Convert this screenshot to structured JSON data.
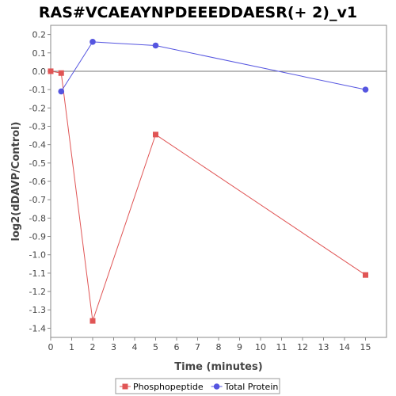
{
  "chart_data": {
    "type": "line",
    "title": "RAS#VCAEAYNPDEEEDDAESR(+ 2)_v1",
    "xlabel": "Time (minutes)",
    "ylabel": "log2(dDAVP/Control)",
    "xlim": [
      0,
      16
    ],
    "ylim": [
      -1.45,
      0.25
    ],
    "xticks": [
      0,
      1,
      2,
      3,
      4,
      5,
      6,
      7,
      8,
      9,
      10,
      11,
      12,
      13,
      14,
      15
    ],
    "yticks": [
      0.2,
      0.1,
      0.0,
      -0.1,
      -0.2,
      -0.3,
      -0.4,
      -0.5,
      -0.6,
      -0.7,
      -0.8,
      -0.9,
      -1.0,
      -1.1,
      -1.2,
      -1.3,
      -1.4
    ],
    "ytick_labels": [
      "0.2",
      "0.1",
      "0.0",
      "-0.1",
      "-0.2",
      "-0.3",
      "-0.4",
      "-0.5",
      "-0.6",
      "-0.7",
      "-0.8",
      "-0.9",
      "-1.0",
      "-1.1",
      "-1.2",
      "-1.3",
      "-1.4"
    ],
    "zero_line": true,
    "grid": false,
    "legend_position": "bottom-center",
    "series": [
      {
        "name": "Phosphopeptide",
        "color": "#e05555",
        "marker": "square",
        "x": [
          0,
          0.5,
          2,
          5,
          15
        ],
        "y": [
          0.0,
          -0.01,
          -1.36,
          -0.345,
          -1.11
        ]
      },
      {
        "name": "Total Protein",
        "color": "#5555e0",
        "marker": "circle",
        "x": [
          0.5,
          2,
          5,
          15
        ],
        "y": [
          -0.11,
          0.16,
          0.14,
          -0.1
        ]
      }
    ]
  }
}
